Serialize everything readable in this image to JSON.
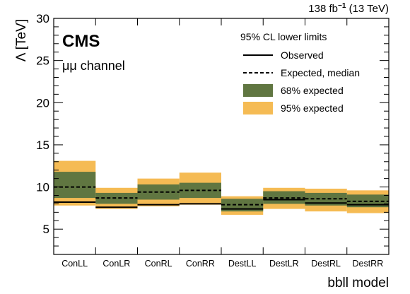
{
  "chart_data": {
    "type": "bar",
    "experiment": "CMS",
    "channel": "μμ channel",
    "lumi": {
      "value": "138 fb",
      "exponent": "−1",
      "energy": " (13 TeV)"
    },
    "ylabel": "Λ [TeV]",
    "xlabel": "bbll model",
    "ylim": [
      2,
      30
    ],
    "yticks": [
      5,
      10,
      15,
      20,
      25,
      30
    ],
    "grid": false,
    "legend_placement": "top-right",
    "legend": {
      "title": "95% CL lower limits",
      "observed": "Observed",
      "expected": "Expected, median",
      "band68": "68% expected",
      "band95": "95% expected"
    },
    "colors": {
      "band68": "#607641",
      "band95": "#F5BB54",
      "line": "#000000"
    },
    "categories": [
      "ConLL",
      "ConLR",
      "ConRL",
      "ConRR",
      "DestLL",
      "DestLR",
      "DestRL",
      "DestRR"
    ],
    "series": [
      {
        "name": "Observed",
        "values": [
          8.2,
          7.6,
          7.9,
          8.0,
          7.4,
          8.5,
          8.1,
          7.9
        ]
      },
      {
        "name": "Expected, median",
        "values": [
          10.0,
          8.7,
          9.4,
          9.6,
          7.9,
          8.7,
          8.6,
          8.3
        ]
      }
    ],
    "band68": [
      [
        8.7,
        11.8
      ],
      [
        8.0,
        9.3
      ],
      [
        8.5,
        10.3
      ],
      [
        8.7,
        10.5
      ],
      [
        7.1,
        8.6
      ],
      [
        8.0,
        9.5
      ],
      [
        7.8,
        9.3
      ],
      [
        7.6,
        9.1
      ]
    ],
    "band95": [
      [
        7.8,
        13.1
      ],
      [
        7.4,
        9.9
      ],
      [
        7.7,
        11.0
      ],
      [
        7.9,
        11.7
      ],
      [
        6.7,
        8.9
      ],
      [
        7.4,
        9.9
      ],
      [
        7.1,
        9.8
      ],
      [
        6.9,
        9.6
      ]
    ]
  }
}
